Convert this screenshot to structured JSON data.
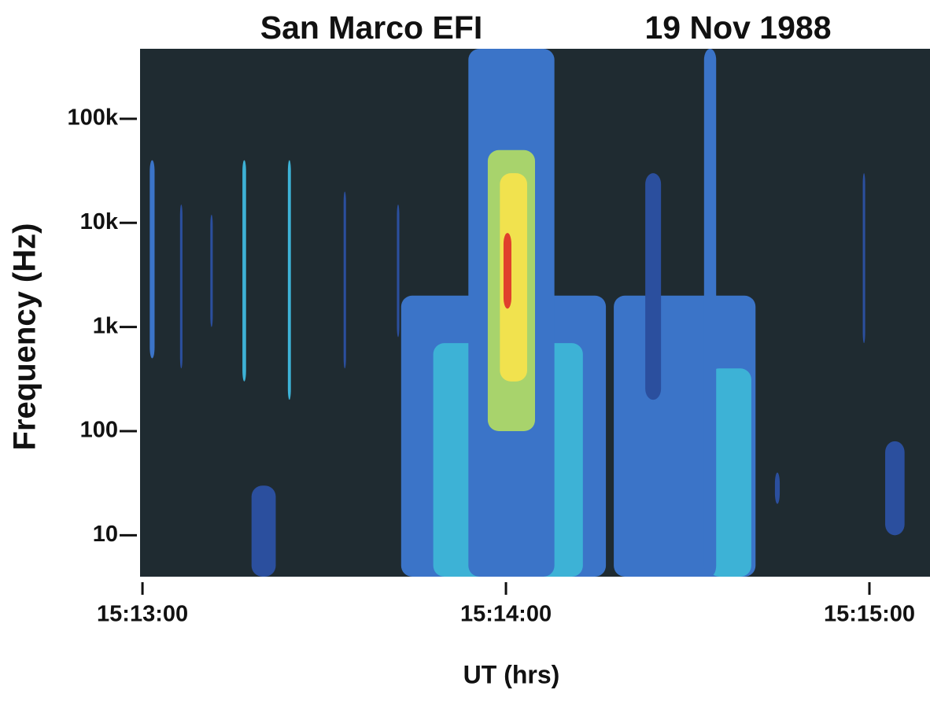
{
  "chart_data": {
    "type": "spectrogram",
    "title": "San Marco EFI",
    "subtitle": "19 Nov 1988",
    "xlabel": "UT (hrs)",
    "ylabel": "Frequency (Hz)",
    "xlim": [
      54779.6,
      54910
    ],
    "xticks": [
      {
        "value": 54780,
        "label": "15:13:00"
      },
      {
        "value": 54840,
        "label": "15:14:00"
      },
      {
        "value": 54900,
        "label": "15:15:00"
      }
    ],
    "ylim": [
      4,
      470000
    ],
    "yscale": "log",
    "yticks": [
      10,
      100,
      {
        "value": 1000,
        "label": "1k"
      },
      {
        "value": 10000,
        "label": "10k"
      },
      {
        "value": 100000,
        "label": "100k"
      }
    ],
    "background": "#1f2b31",
    "colors": [
      "#2b4f9e",
      "#3b74c8",
      "#3db2d6",
      "#a8d36c",
      "#f1e24e",
      "#e0402c"
    ],
    "patches": [
      {
        "t": [
          54781.2,
          54782.0
        ],
        "f": [
          500,
          40000
        ],
        "level": 1
      },
      {
        "t": [
          54786.2,
          54786.6
        ],
        "f": [
          400,
          15000
        ],
        "level": 0
      },
      {
        "t": [
          54791.2,
          54791.6
        ],
        "f": [
          1000,
          12000
        ],
        "level": 0
      },
      {
        "t": [
          54796.5,
          54797.1
        ],
        "f": [
          300,
          40000
        ],
        "level": 2
      },
      {
        "t": [
          54804.0,
          54804.5
        ],
        "f": [
          200,
          40000
        ],
        "level": 2
      },
      {
        "t": [
          54813.2,
          54813.6
        ],
        "f": [
          400,
          20000
        ],
        "level": 0
      },
      {
        "t": [
          54822.0,
          54822.4
        ],
        "f": [
          800,
          15000
        ],
        "level": 0
      },
      {
        "t": [
          54798.0,
          54802.0
        ],
        "f": [
          4,
          30
        ],
        "level": 0
      },
      {
        "t": [
          54822.7,
          54856.5
        ],
        "f": [
          4,
          2000
        ],
        "level": 1
      },
      {
        "t": [
          54828.0,
          54852.7
        ],
        "f": [
          4,
          700
        ],
        "level": 2
      },
      {
        "t": [
          54833.8,
          54848.0
        ],
        "f": [
          4,
          470000
        ],
        "level": 1
      },
      {
        "t": [
          54837.0,
          54844.8
        ],
        "f": [
          100,
          50000
        ],
        "level": 3
      },
      {
        "t": [
          54839.0,
          54843.5
        ],
        "f": [
          300,
          30000
        ],
        "level": 4
      },
      {
        "t": [
          54839.6,
          54840.9
        ],
        "f": [
          1500,
          8000
        ],
        "level": 5
      },
      {
        "t": [
          54857.8,
          54881.2
        ],
        "f": [
          4,
          2000
        ],
        "level": 1
      },
      {
        "t": [
          54873.4,
          54880.5
        ],
        "f": [
          4,
          400
        ],
        "level": 2
      },
      {
        "t": [
          54872.7,
          54874.7
        ],
        "f": [
          4,
          470000
        ],
        "level": 1
      },
      {
        "t": [
          54863.0,
          54865.6
        ],
        "f": [
          200,
          30000
        ],
        "level": 0
      },
      {
        "t": [
          54884.4,
          54885.2
        ],
        "f": [
          20,
          40
        ],
        "level": 0
      },
      {
        "t": [
          54898.9,
          54899.3
        ],
        "f": [
          700,
          30000
        ],
        "level": 0
      },
      {
        "t": [
          54902.6,
          54905.8
        ],
        "f": [
          10,
          80
        ],
        "level": 0
      }
    ]
  }
}
